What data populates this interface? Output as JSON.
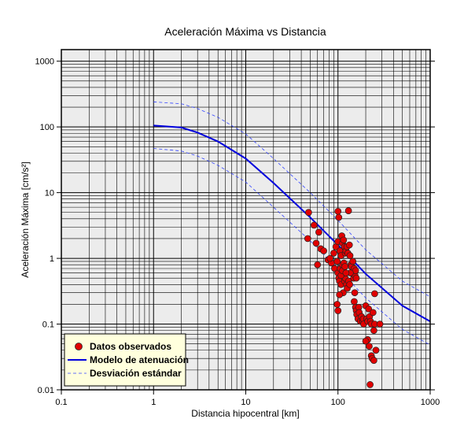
{
  "chart_data": {
    "type": "scatter",
    "title": "Aceleración Máxima vs Distancia",
    "xlabel": "Distancia hipocentral [km]",
    "ylabel": "Aceleración Máxima [cm/s²]",
    "x_scale": "log",
    "y_scale": "log",
    "xlim": [
      0.1,
      1000
    ],
    "ylim": [
      0.01,
      1500
    ],
    "x_ticks": [
      {
        "value": 0.1,
        "label": "0.1"
      },
      {
        "value": 1,
        "label": "1"
      },
      {
        "value": 10,
        "label": "10"
      },
      {
        "value": 100,
        "label": "100"
      },
      {
        "value": 1000,
        "label": "1000"
      }
    ],
    "y_ticks": [
      {
        "value": 0.01,
        "label": "0.01"
      },
      {
        "value": 0.1,
        "label": "0.1"
      },
      {
        "value": 1,
        "label": "1"
      },
      {
        "value": 10,
        "label": "10"
      },
      {
        "value": 100,
        "label": "100"
      },
      {
        "value": 1000,
        "label": "1000"
      }
    ],
    "grid": true,
    "legend_position": "bottom-left",
    "colors": {
      "points": "#e00000",
      "model": "#0000dd",
      "deviation": "#3344ff",
      "legend_bg": "#ffffdd",
      "plot_bg": "#ececec"
    },
    "series": [
      {
        "name": "Datos observados",
        "style": "scatter",
        "points": [
          [
            48,
            5.0
          ],
          [
            47,
            2.0
          ],
          [
            55,
            3.2
          ],
          [
            62,
            2.5
          ],
          [
            58,
            1.7
          ],
          [
            65,
            1.4
          ],
          [
            70,
            1.3
          ],
          [
            60,
            0.8
          ],
          [
            78,
            0.95
          ],
          [
            85,
            0.85
          ],
          [
            82,
            1.0
          ],
          [
            90,
            1.2
          ],
          [
            92,
            0.7
          ],
          [
            95,
            1.5
          ],
          [
            98,
            0.9
          ],
          [
            100,
            5.2
          ],
          [
            102,
            4.2
          ],
          [
            100,
            1.8
          ],
          [
            105,
            1.3
          ],
          [
            108,
            1.1
          ],
          [
            110,
            2.2
          ],
          [
            112,
            1.7
          ],
          [
            115,
            1.9
          ],
          [
            118,
            1.5
          ],
          [
            120,
            1.2
          ],
          [
            122,
            1.3
          ],
          [
            125,
            1.5
          ],
          [
            128,
            1.2
          ],
          [
            130,
            5.3
          ],
          [
            133,
            1.6
          ],
          [
            135,
            1.1
          ],
          [
            138,
            0.8
          ],
          [
            140,
            0.75
          ],
          [
            142,
            0.6
          ],
          [
            145,
            0.9
          ],
          [
            148,
            0.5
          ],
          [
            150,
            0.7
          ],
          [
            153,
            0.55
          ],
          [
            155,
            0.65
          ],
          [
            158,
            0.5
          ],
          [
            100,
            0.6
          ],
          [
            102,
            0.5
          ],
          [
            104,
            0.45
          ],
          [
            106,
            0.7
          ],
          [
            108,
            0.4
          ],
          [
            110,
            0.55
          ],
          [
            112,
            0.8
          ],
          [
            114,
            0.3
          ],
          [
            116,
            0.6
          ],
          [
            118,
            0.45
          ],
          [
            120,
            0.5
          ],
          [
            124,
            0.4
          ],
          [
            126,
            0.35
          ],
          [
            130,
            0.45
          ],
          [
            134,
            0.4
          ],
          [
            136,
            0.6
          ],
          [
            98,
            0.2
          ],
          [
            100,
            0.16
          ],
          [
            104,
            0.28
          ],
          [
            108,
            0.55
          ],
          [
            112,
            0.65
          ],
          [
            116,
            0.85
          ],
          [
            119,
            0.75
          ],
          [
            122,
            0.6
          ],
          [
            150,
            0.22
          ],
          [
            152,
            0.3
          ],
          [
            155,
            0.18
          ],
          [
            158,
            0.16
          ],
          [
            160,
            0.14
          ],
          [
            165,
            0.12
          ],
          [
            168,
            0.18
          ],
          [
            170,
            0.15
          ],
          [
            175,
            0.11
          ],
          [
            180,
            0.13
          ],
          [
            185,
            0.11
          ],
          [
            188,
            0.12
          ],
          [
            190,
            0.1
          ],
          [
            200,
            0.19
          ],
          [
            205,
            0.12
          ],
          [
            210,
            0.11
          ],
          [
            215,
            0.17
          ],
          [
            220,
            0.13
          ],
          [
            225,
            0.11
          ],
          [
            230,
            0.1
          ],
          [
            240,
            0.15
          ],
          [
            245,
            0.08
          ],
          [
            250,
            0.1
          ],
          [
            285,
            0.1
          ],
          [
            250,
            0.29
          ],
          [
            210,
            0.058
          ],
          [
            200,
            0.055
          ],
          [
            218,
            0.046
          ],
          [
            258,
            0.04
          ],
          [
            230,
            0.033
          ],
          [
            235,
            0.03
          ],
          [
            245,
            0.028
          ],
          [
            223,
            0.012
          ]
        ]
      },
      {
        "name": "Modelo de atenuación",
        "style": "line",
        "points": [
          [
            1,
            105
          ],
          [
            2,
            98
          ],
          [
            3,
            82
          ],
          [
            5,
            60
          ],
          [
            10,
            33
          ],
          [
            20,
            14
          ],
          [
            50,
            4.2
          ],
          [
            100,
            1.6
          ],
          [
            200,
            0.58
          ],
          [
            500,
            0.19
          ],
          [
            1000,
            0.11
          ]
        ]
      },
      {
        "name": "Desviación estándar",
        "style": "dashed",
        "points": [
          [
            1,
            240
          ],
          [
            2,
            225
          ],
          [
            3,
            190
          ],
          [
            5,
            140
          ],
          [
            10,
            78
          ],
          [
            20,
            33
          ],
          [
            50,
            10
          ],
          [
            100,
            3.8
          ],
          [
            200,
            1.35
          ],
          [
            500,
            0.45
          ],
          [
            1000,
            0.26
          ]
        ]
      },
      {
        "style": "dashed",
        "points": [
          [
            1,
            47
          ],
          [
            2,
            43
          ],
          [
            3,
            36
          ],
          [
            5,
            26
          ],
          [
            10,
            14.5
          ],
          [
            20,
            6
          ],
          [
            50,
            1.85
          ],
          [
            100,
            0.7
          ],
          [
            200,
            0.25
          ],
          [
            500,
            0.083
          ],
          [
            1000,
            0.048
          ]
        ]
      }
    ]
  }
}
